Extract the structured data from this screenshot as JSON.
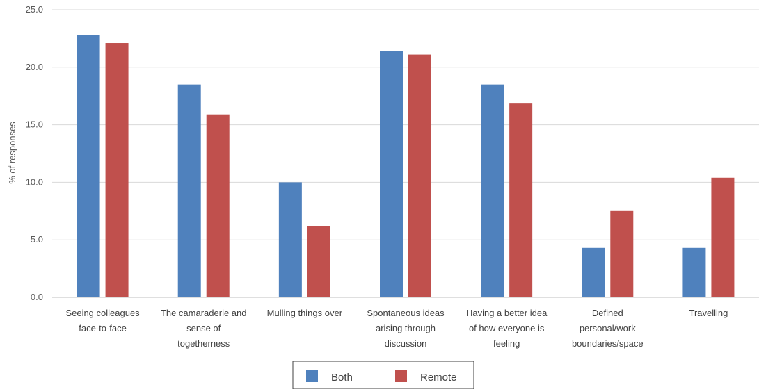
{
  "chart_data": {
    "type": "bar",
    "ylabel": "% of responses",
    "xlabel": "",
    "ylim": [
      0,
      25
    ],
    "yticks": [
      "0.0",
      "5.0",
      "10.0",
      "15.0",
      "20.0",
      "25.0"
    ],
    "grid": true,
    "legend_position": "bottom",
    "categories": [
      [
        "Seeing colleagues",
        "face-to-face"
      ],
      [
        "The camaraderie and",
        "sense of",
        "togetherness"
      ],
      [
        "Mulling things over"
      ],
      [
        "Spontaneous ideas",
        "arising through",
        "discussion"
      ],
      [
        "Having a better idea",
        "of how everyone is",
        "feeling"
      ],
      [
        "Defined",
        "personal/work",
        "boundaries/space"
      ],
      [
        "Travelling"
      ]
    ],
    "series": [
      {
        "name": "Both",
        "color": "#4f81bd",
        "values": [
          22.8,
          18.5,
          10.0,
          21.4,
          18.5,
          4.3,
          4.3
        ]
      },
      {
        "name": "Remote",
        "color": "#c0504d",
        "values": [
          22.1,
          15.9,
          6.2,
          21.1,
          16.9,
          7.5,
          10.4
        ]
      }
    ]
  }
}
